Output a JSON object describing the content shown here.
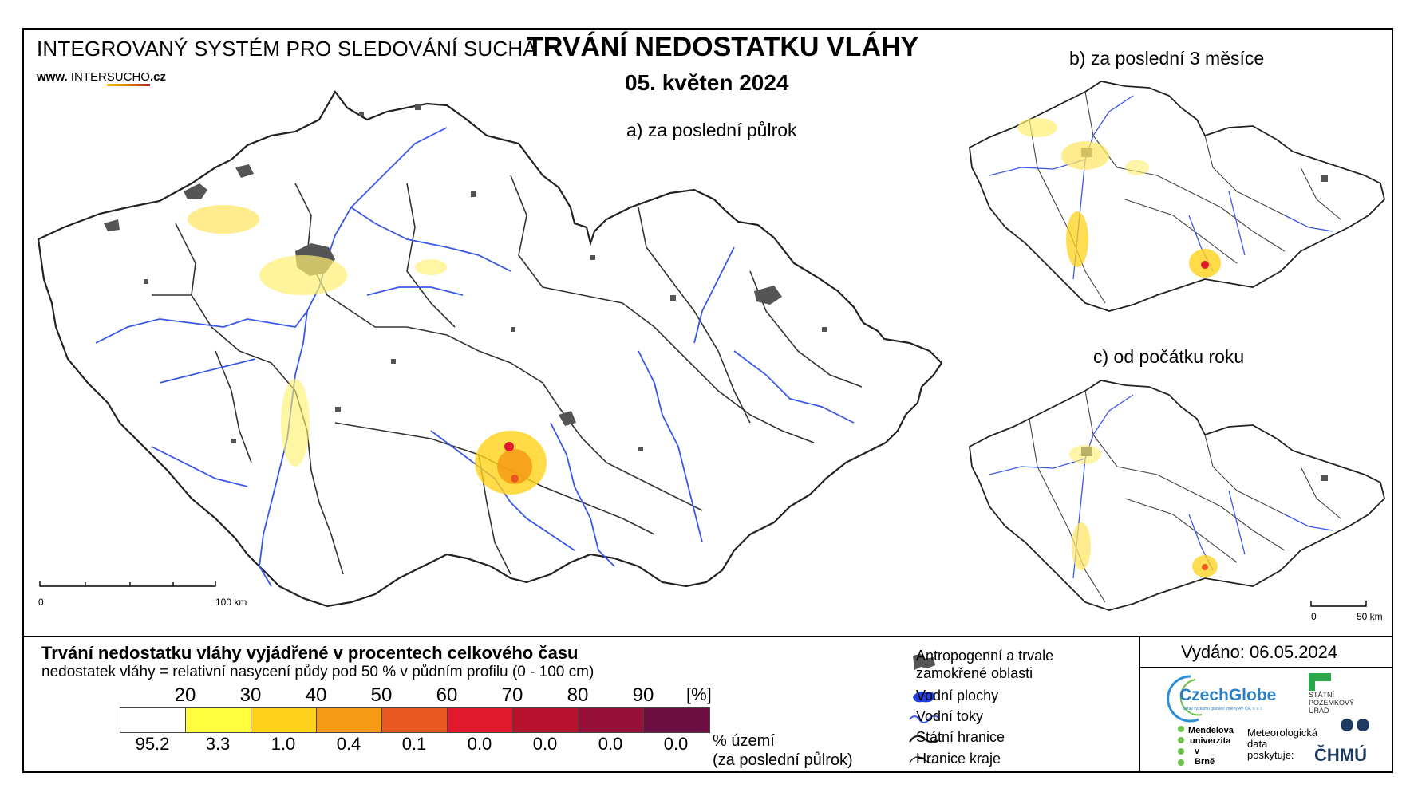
{
  "header": {
    "system_title": "INTEGROVANÝ SYSTÉM PRO SLEDOVÁNÍ SUCHA",
    "website_prefix": "www. ",
    "website_brand_a": "INTER",
    "website_brand_b": "SUCHO",
    "website_suffix": ".cz",
    "main_title": "TRVÁNÍ NEDOSTATKU VLÁHY",
    "date": "05. květen 2024"
  },
  "maps": {
    "a_label": "a) za poslední půlrok",
    "b_label": "b) za poslední 3 měsíce",
    "c_label": "c) od počátku roku",
    "scale_main": {
      "start": "0",
      "end": "100 km"
    },
    "scale_small": {
      "start": "0",
      "end": "50 km"
    }
  },
  "legend": {
    "title": "Trvání nedostatku vláhy vyjádřené v procentech celkového času",
    "subtitle": "nedostatek vláhy = relativní nasycení půdy pod 50 % v půdním profilu (0 - 100 cm)",
    "unit": "[%]",
    "thresholds": [
      "20",
      "30",
      "40",
      "50",
      "60",
      "70",
      "80",
      "90"
    ],
    "colors": [
      "#ffffff",
      "#ffff40",
      "#ffd21a",
      "#f59a14",
      "#e8581f",
      "#e01a2c",
      "#b8112e",
      "#951038",
      "#6b0d3f"
    ],
    "percentages": [
      "95.2",
      "3.3",
      "1.0",
      "0.4",
      "0.1",
      "0.0",
      "0.0",
      "0.0",
      "0.0"
    ],
    "percent_label_1": "% území",
    "percent_label_2": "(za poslední půlrok)"
  },
  "symbols": {
    "anthropogenic_1": "Antropogenní a trvale",
    "anthropogenic_2": "zamokřené oblasti",
    "water_bodies": "Vodní plochy",
    "rivers": "Vodní toky",
    "state_border": "Státní hranice",
    "region_border": "Hranice kraje"
  },
  "footer": {
    "issued": "Vydáno: 06.05.2024",
    "czechglobe": "CzechGlobe",
    "czechglobe_sub": "Ústav výzkumu globální změny AV ČR, v. v. i.",
    "spu_1": "STÁTNÍ",
    "spu_2": "POZEMKOVÝ",
    "spu_3": "ÚŘAD",
    "mendel_1": "Mendelova",
    "mendel_2": "univerzita",
    "mendel_3": "v Brně",
    "meteo_1": "Meteorologická",
    "meteo_2": "data",
    "meteo_3": "poskytuje:",
    "chmu": "ČHMÚ"
  },
  "icons": [
    "anthropogenic-area-icon",
    "water-body-icon",
    "river-icon",
    "state-border-icon",
    "region-border-icon"
  ]
}
